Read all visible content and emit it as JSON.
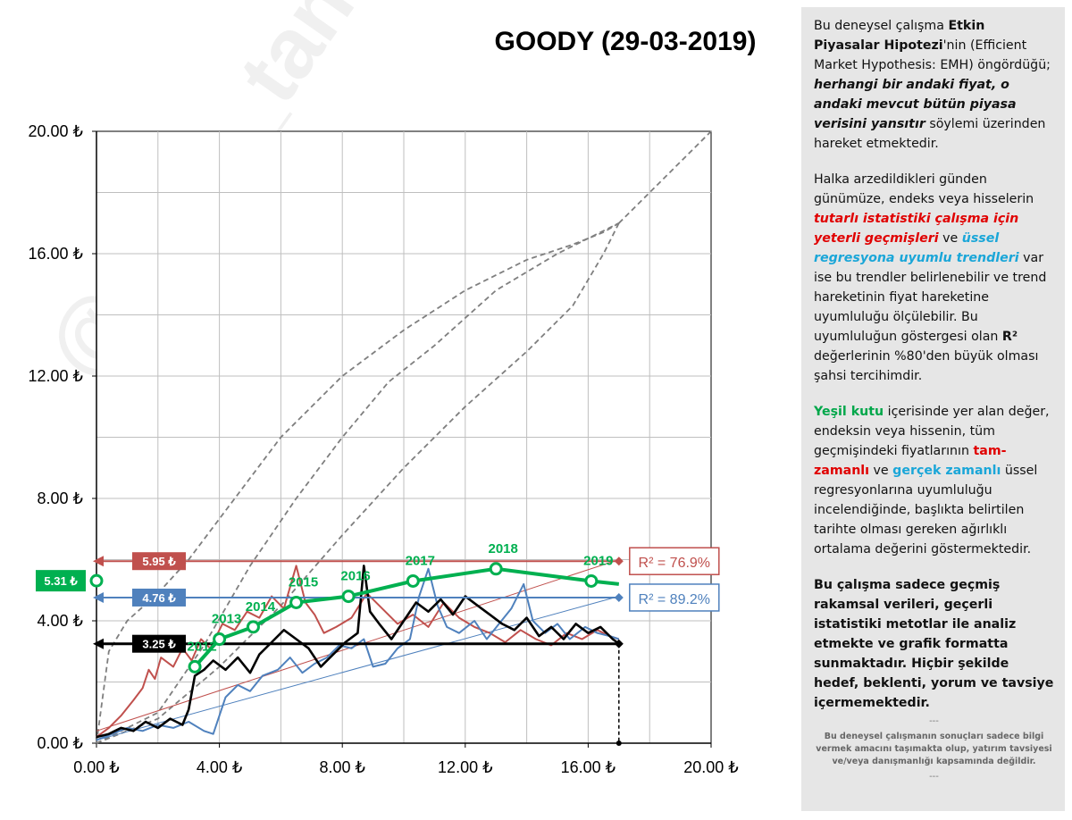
{
  "watermark": "@ercip_tansel",
  "chart_data": {
    "type": "line",
    "title": "GOODY (29-03-2019)",
    "currency": "₺",
    "xlim": [
      0,
      20
    ],
    "ylim": [
      0,
      20
    ],
    "x_ticks": [
      "0.00 ₺",
      "4.00 ₺",
      "8.00 ₺",
      "12.00 ₺",
      "16.00 ₺",
      "20.00 ₺"
    ],
    "y_ticks": [
      "0.00 ₺",
      "4.00 ₺",
      "8.00 ₺",
      "12.00 ₺",
      "16.00 ₺",
      "20.00 ₺"
    ],
    "grid": true,
    "x_end": 17.0,
    "colors": {
      "red": "#c0504d",
      "blue": "#4f81bd",
      "black": "#000000",
      "green": "#00b050",
      "grey_dash": "#7f7f7f"
    },
    "levels": [
      {
        "key": "red",
        "value": 5.95,
        "label": "5.95 ₺",
        "r2_label": "R² = 76.9%"
      },
      {
        "key": "blue",
        "value": 4.76,
        "label": "4.76 ₺",
        "r2_label": "R² = 89.2%"
      },
      {
        "key": "black",
        "value": 3.25,
        "label": "3.25 ₺"
      }
    ],
    "green_box": {
      "value": 5.31,
      "label": "5.31 ₺"
    },
    "trend_lines": {
      "red": [
        [
          0,
          0.4
        ],
        [
          17,
          6.0
        ]
      ],
      "blue": [
        [
          0,
          0.1
        ],
        [
          17,
          4.8
        ]
      ],
      "diagonal": [
        [
          0,
          0
        ],
        [
          20,
          20
        ]
      ]
    },
    "weighted_average": {
      "name": "ağırlıklı ortalama",
      "points": [
        {
          "x": 3.2,
          "y": 2.5,
          "label": "2012"
        },
        {
          "x": 4.0,
          "y": 3.4,
          "label": "2013"
        },
        {
          "x": 5.1,
          "y": 3.8,
          "label": "2014"
        },
        {
          "x": 6.5,
          "y": 4.6,
          "label": "2015"
        },
        {
          "x": 8.2,
          "y": 4.8,
          "label": "2016"
        },
        {
          "x": 10.3,
          "y": 5.3,
          "label": "2017"
        },
        {
          "x": 13.0,
          "y": 5.7,
          "label": "2018"
        },
        {
          "x": 16.1,
          "y": 5.3,
          "label": "2019"
        }
      ],
      "end": {
        "x": 17.0,
        "y": 5.2
      }
    },
    "series": [
      {
        "key": "red",
        "points": [
          [
            0,
            0.2
          ],
          [
            0.4,
            0.5
          ],
          [
            0.8,
            0.9
          ],
          [
            1.2,
            1.4
          ],
          [
            1.5,
            1.8
          ],
          [
            1.7,
            2.4
          ],
          [
            1.9,
            2.1
          ],
          [
            2.1,
            2.8
          ],
          [
            2.5,
            2.5
          ],
          [
            2.8,
            3.1
          ],
          [
            3.1,
            2.7
          ],
          [
            3.4,
            3.4
          ],
          [
            3.7,
            3.1
          ],
          [
            4.1,
            3.9
          ],
          [
            4.5,
            3.7
          ],
          [
            4.9,
            4.3
          ],
          [
            5.3,
            4.1
          ],
          [
            5.7,
            4.8
          ],
          [
            6.1,
            4.4
          ],
          [
            6.5,
            5.8
          ],
          [
            6.8,
            4.6
          ],
          [
            7.1,
            4.2
          ],
          [
            7.4,
            3.6
          ],
          [
            7.8,
            3.8
          ],
          [
            8.3,
            4.1
          ],
          [
            8.8,
            4.9
          ],
          [
            9.3,
            4.4
          ],
          [
            9.8,
            3.9
          ],
          [
            10.3,
            4.2
          ],
          [
            10.8,
            3.8
          ],
          [
            11.3,
            4.6
          ],
          [
            11.8,
            4.1
          ],
          [
            12.3,
            3.8
          ],
          [
            12.8,
            3.6
          ],
          [
            13.3,
            3.3
          ],
          [
            13.8,
            3.7
          ],
          [
            14.3,
            3.4
          ],
          [
            14.8,
            3.2
          ],
          [
            15.3,
            3.6
          ],
          [
            15.8,
            3.4
          ],
          [
            16.3,
            3.7
          ],
          [
            16.7,
            3.5
          ],
          [
            17.0,
            3.4
          ]
        ]
      },
      {
        "key": "blue",
        "points": [
          [
            0,
            0.1
          ],
          [
            0.5,
            0.3
          ],
          [
            1.0,
            0.5
          ],
          [
            1.5,
            0.4
          ],
          [
            2.0,
            0.6
          ],
          [
            2.5,
            0.5
          ],
          [
            3.0,
            0.7
          ],
          [
            3.5,
            0.4
          ],
          [
            3.8,
            0.3
          ],
          [
            4.2,
            1.5
          ],
          [
            4.6,
            1.9
          ],
          [
            5.0,
            1.7
          ],
          [
            5.4,
            2.2
          ],
          [
            5.9,
            2.4
          ],
          [
            6.3,
            2.8
          ],
          [
            6.7,
            2.3
          ],
          [
            7.1,
            2.6
          ],
          [
            7.5,
            2.8
          ],
          [
            7.9,
            3.2
          ],
          [
            8.3,
            3.1
          ],
          [
            8.7,
            3.4
          ],
          [
            9.0,
            2.5
          ],
          [
            9.4,
            2.6
          ],
          [
            9.8,
            3.1
          ],
          [
            10.2,
            3.4
          ],
          [
            10.5,
            4.8
          ],
          [
            10.8,
            5.7
          ],
          [
            11.1,
            4.5
          ],
          [
            11.4,
            3.8
          ],
          [
            11.8,
            3.6
          ],
          [
            12.3,
            4.0
          ],
          [
            12.7,
            3.4
          ],
          [
            13.1,
            3.9
          ],
          [
            13.5,
            4.4
          ],
          [
            13.9,
            5.2
          ],
          [
            14.2,
            4.0
          ],
          [
            14.6,
            3.6
          ],
          [
            15.0,
            3.9
          ],
          [
            15.4,
            3.4
          ],
          [
            15.9,
            3.8
          ],
          [
            16.3,
            3.6
          ],
          [
            16.7,
            3.5
          ],
          [
            17.0,
            3.4
          ]
        ]
      },
      {
        "key": "black",
        "points": [
          [
            0,
            0.2
          ],
          [
            0.4,
            0.3
          ],
          [
            0.8,
            0.5
          ],
          [
            1.2,
            0.4
          ],
          [
            1.6,
            0.7
          ],
          [
            2.0,
            0.5
          ],
          [
            2.4,
            0.8
          ],
          [
            2.8,
            0.6
          ],
          [
            3.0,
            1.1
          ],
          [
            3.2,
            2.2
          ],
          [
            3.5,
            2.4
          ],
          [
            3.8,
            2.7
          ],
          [
            4.2,
            2.4
          ],
          [
            4.6,
            2.8
          ],
          [
            5.0,
            2.3
          ],
          [
            5.3,
            2.9
          ],
          [
            5.7,
            3.3
          ],
          [
            6.1,
            3.7
          ],
          [
            6.5,
            3.4
          ],
          [
            6.9,
            3.1
          ],
          [
            7.3,
            2.5
          ],
          [
            7.7,
            2.9
          ],
          [
            8.1,
            3.3
          ],
          [
            8.5,
            3.6
          ],
          [
            8.7,
            5.8
          ],
          [
            8.9,
            4.3
          ],
          [
            9.2,
            3.9
          ],
          [
            9.6,
            3.4
          ],
          [
            10.0,
            4.0
          ],
          [
            10.4,
            4.6
          ],
          [
            10.8,
            4.3
          ],
          [
            11.2,
            4.7
          ],
          [
            11.6,
            4.2
          ],
          [
            12.0,
            4.8
          ],
          [
            12.4,
            4.5
          ],
          [
            12.8,
            4.2
          ],
          [
            13.2,
            3.9
          ],
          [
            13.6,
            3.7
          ],
          [
            14.0,
            4.1
          ],
          [
            14.4,
            3.5
          ],
          [
            14.8,
            3.8
          ],
          [
            15.2,
            3.4
          ],
          [
            15.6,
            3.9
          ],
          [
            16.0,
            3.6
          ],
          [
            16.4,
            3.8
          ],
          [
            16.8,
            3.4
          ],
          [
            17.0,
            3.25
          ]
        ]
      }
    ],
    "envelopes": [
      [
        [
          0,
          0
        ],
        [
          0.4,
          3.0
        ],
        [
          1.0,
          4.0
        ],
        [
          2.0,
          4.9
        ],
        [
          3.0,
          6.0
        ],
        [
          4.5,
          8.0
        ],
        [
          6.0,
          10.0
        ],
        [
          8.0,
          12.0
        ],
        [
          10.0,
          13.5
        ],
        [
          12.0,
          14.8
        ],
        [
          14.0,
          15.8
        ],
        [
          15.5,
          16.3
        ],
        [
          16.5,
          16.7
        ],
        [
          17.0,
          17.0
        ]
      ],
      [
        [
          0,
          0
        ],
        [
          2.0,
          1.0
        ],
        [
          3.5,
          3.2
        ],
        [
          5.0,
          5.8
        ],
        [
          6.5,
          8.0
        ],
        [
          8.0,
          10.0
        ],
        [
          9.5,
          11.8
        ],
        [
          11.0,
          13.0
        ],
        [
          13.0,
          14.8
        ],
        [
          15.0,
          16.0
        ],
        [
          17.0,
          17.0
        ]
      ],
      [
        [
          0,
          0
        ],
        [
          2.0,
          0.8
        ],
        [
          4.0,
          2.5
        ],
        [
          6.0,
          4.5
        ],
        [
          8.0,
          6.8
        ],
        [
          10.0,
          9.0
        ],
        [
          12.0,
          11.0
        ],
        [
          14.0,
          12.8
        ],
        [
          15.5,
          14.3
        ],
        [
          16.5,
          16.0
        ],
        [
          17.0,
          17.0
        ]
      ],
      [
        [
          17.0,
          17.0
        ],
        [
          18.5,
          18.5
        ],
        [
          20,
          20
        ]
      ]
    ]
  },
  "panel": {
    "p1_a": "Bu deneysel çalışma ",
    "p1_b": "Etkin Piyasalar Hipotezi",
    "p1_c": "'nin (Efficient Market Hypothesis: EMH) öngördüğü; ",
    "p1_d": "herhangi bir andaki fiyat, o andaki mevcut bütün piyasa verisini yansıtır",
    "p1_e": "  söylemi üzerinden hareket etmektedir.",
    "p2_a": "Halka arzedildikleri günden günümüze, endeks veya hisselerin ",
    "p2_b": "tutarlı istatistiki çalışma için yeterli geçmişleri",
    "p2_c": " ve ",
    "p2_d": "üssel regresyona uyumlu trendleri",
    "p2_e": " var ise bu trendler belirlenebilir ve trend hareketinin fiyat hareketine uyumluluğu ölçülebilir.  Bu uyumluluğun göstergesi olan ",
    "p2_f": "R²",
    "p2_g": " değerlerinin %80'den büyük olması şahsi tercihimdir.",
    "p3_a": "Yeşil kutu",
    "p3_b": " içerisinde yer alan değer, endeksin veya hissenin, tüm geçmişindeki fiyatlarının ",
    "p3_c": "tam-zamanlı",
    "p3_d": " ve ",
    "p3_e": "gerçek zamanlı",
    "p3_f": " üssel regresyonlarına uyumluluğu incelendiğinde, başlıkta belirtilen tarihte olması gereken ağırlıklı ortalama değerini göstermektedir.",
    "p4": "Bu çalışma sadece geçmiş rakamsal verileri, geçerli istatistiki metotlar ile  analiz etmekte ve grafik formatta sunmaktadır. Hiçbir şekilde hedef, beklenti, yorum ve tavsiye içermemektedir.",
    "sep": "---",
    "footnote": "Bu deneysel çalışmanın sonuçları sadece bilgi vermek amacını taşımakta olup, yatırım tavsiyesi ve/veya danışmanlığı kapsamında değildir."
  }
}
